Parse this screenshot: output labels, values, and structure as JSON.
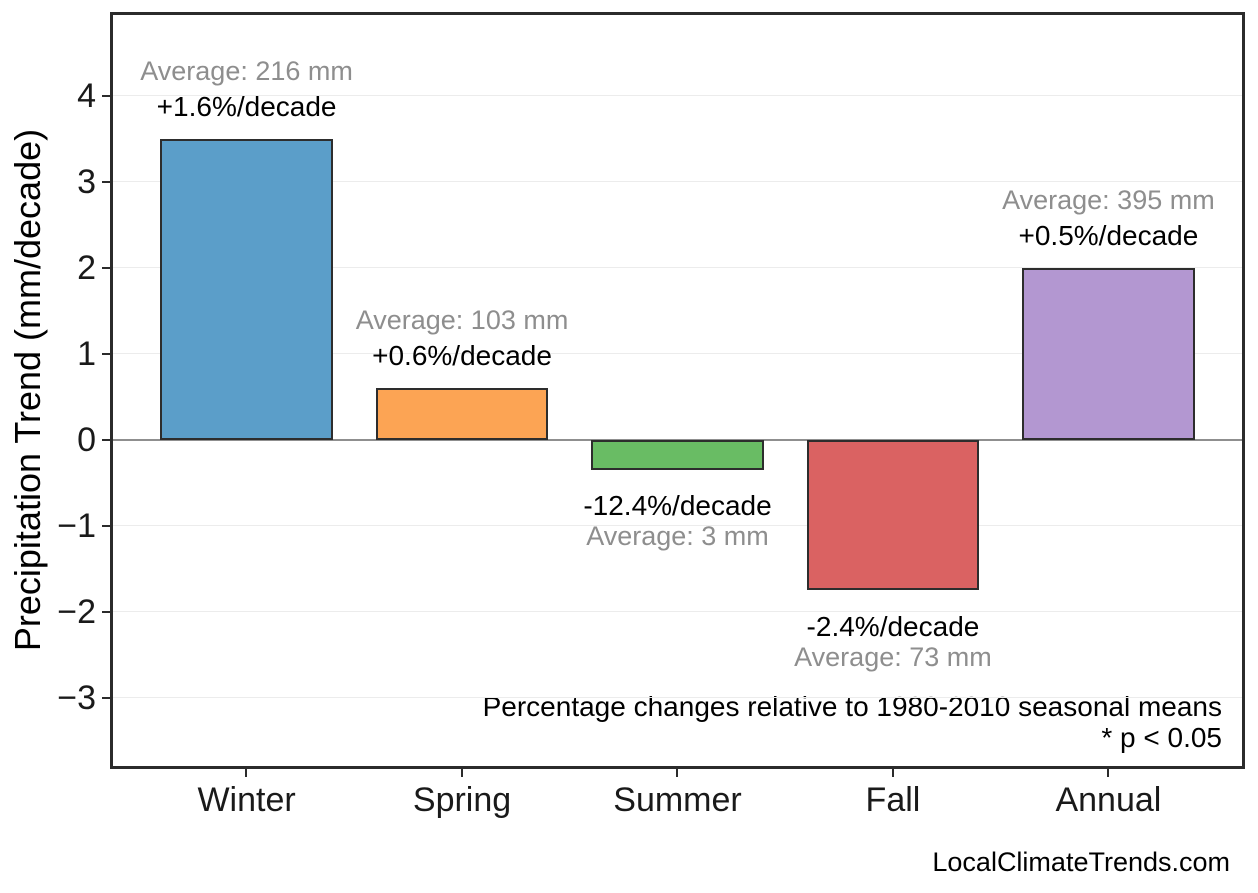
{
  "chart_data": {
    "type": "bar",
    "title": "",
    "ylabel": "Precipitation Trend (mm/decade)",
    "xlabel": "",
    "categories": [
      "Winter",
      "Spring",
      "Summer",
      "Fall",
      "Annual"
    ],
    "values": [
      3.5,
      0.6,
      -0.35,
      -1.75,
      2.0
    ],
    "units": "mm/decade",
    "pct_per_decade": [
      1.6,
      0.6,
      -12.4,
      -2.4,
      0.5
    ],
    "average_mm": [
      216,
      103,
      3,
      73,
      395
    ],
    "bar_labels": [
      {
        "avg": "Average: 216 mm",
        "pct": "+1.6%/decade"
      },
      {
        "avg": "Average: 103 mm",
        "pct": "+0.6%/decade"
      },
      {
        "avg": "Average: 3 mm",
        "pct": "-12.4%/decade"
      },
      {
        "avg": "Average: 73 mm",
        "pct": "-2.4%/decade"
      },
      {
        "avg": "Average: 395 mm",
        "pct": "+0.5%/decade"
      }
    ],
    "ytick_values": [
      4,
      3,
      2,
      1,
      0,
      -1,
      -2,
      -3
    ],
    "yticks": [
      "4",
      "3",
      "2",
      "1",
      "0",
      "−1",
      "−2",
      "−3"
    ],
    "ylim": [
      -3.79,
      4.94
    ],
    "grid": "horizontal-light",
    "legend_position": "none",
    "annotations": [
      "Percentage changes relative to 1980-2010 seasonal means",
      "* p < 0.05"
    ],
    "colors": {
      "bars": [
        "#5b9ec9",
        "#fca454",
        "#69bc64",
        "#da6262",
        "#b397d1"
      ],
      "bar_edge": "#2d2d2d",
      "zero_line": "#8f8f8f",
      "gridline": "#ececec",
      "label_gray": "#8e8e8e",
      "label_black": "#000000",
      "axis": "#2b2b2b"
    }
  },
  "footer": {
    "watermark": "LocalClimateTrends.com"
  }
}
